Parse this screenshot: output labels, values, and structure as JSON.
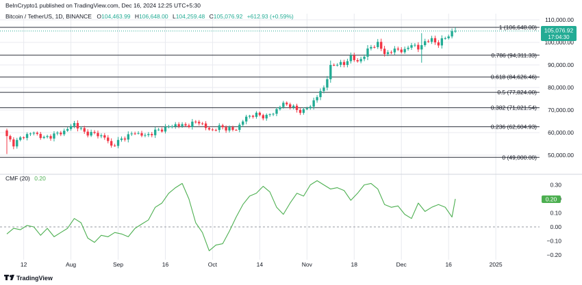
{
  "header": {
    "published": "BeInCrypto1 published on TradingView.com, Dec 16, 2024 12:25 UTC+5:30",
    "symbol": "Bitcoin / TetherUS, 1D, BINANCE",
    "o_label": "O",
    "o_value": "104,463.99",
    "h_label": "H",
    "h_value": "106,648.00",
    "l_label": "L",
    "l_value": "104,259.48",
    "c_label": "C",
    "c_value": "105,076.92",
    "change": "+612.93 (+0.59%)"
  },
  "price_badge": {
    "price": "105,076.92",
    "countdown": "17:04:30"
  },
  "cmf_badge": "0.20",
  "footer": {
    "brand": "TradingView"
  },
  "colors": {
    "up": "#22ab94",
    "down": "#f23645",
    "cmf_line": "#4caf50",
    "grid": "#e8eaef",
    "fib_line": "#2a2e39",
    "axis_text": "#131722",
    "zero_line": "#9598a1"
  },
  "chart_data": [
    {
      "type": "candlestick",
      "title": "Bitcoin / TetherUS, 1D, BINANCE",
      "ylim": [
        44000,
        112500
      ],
      "y_ticks": [
        50000,
        60000,
        70000,
        80000,
        90000,
        100000,
        110000
      ],
      "y_tick_labels": [
        "50,000.00",
        "60,000.00",
        "70,000.00",
        "80,000.00",
        "90,000.00",
        "100,000.00",
        "110,000.00"
      ],
      "x_ticks": [
        {
          "index": 5,
          "label": "12"
        },
        {
          "index": 19,
          "label": "Aug"
        },
        {
          "index": 33,
          "label": "Sep"
        },
        {
          "index": 47,
          "label": "16"
        },
        {
          "index": 61,
          "label": "Oct"
        },
        {
          "index": 75,
          "label": "14"
        },
        {
          "index": 89,
          "label": "Nov"
        },
        {
          "index": 103,
          "label": "18"
        },
        {
          "index": 117,
          "label": "Dec"
        },
        {
          "index": 131,
          "label": "16"
        },
        {
          "index": 145,
          "label": "2025"
        }
      ],
      "fib_levels": [
        {
          "label": "1 (106,648.00)",
          "value": 106648
        },
        {
          "label": "0.786 (94,311.33)",
          "value": 94311.33
        },
        {
          "label": "0.618 (84,626.46)",
          "value": 84626.46
        },
        {
          "label": "0.5 (77,824.00)",
          "value": 77824
        },
        {
          "label": "0.382 (71,021.54)",
          "value": 71021.54
        },
        {
          "label": "0.236 (62,604.93)",
          "value": 62604.93
        },
        {
          "label": "0 (49,000.00)",
          "value": 49000
        }
      ],
      "last_price": 105076.92,
      "anchors": [
        [
          0,
          58000
        ],
        [
          2,
          55000
        ],
        [
          5,
          58500
        ],
        [
          8,
          60000
        ],
        [
          11,
          57500
        ],
        [
          14,
          59000
        ],
        [
          17,
          60500
        ],
        [
          20,
          64000
        ],
        [
          23,
          60000
        ],
        [
          26,
          59500
        ],
        [
          29,
          58000
        ],
        [
          31,
          54000
        ],
        [
          33,
          56000
        ],
        [
          35,
          58000
        ],
        [
          38,
          60000
        ],
        [
          41,
          58500
        ],
        [
          44,
          60500
        ],
        [
          47,
          62000
        ],
        [
          50,
          63500
        ],
        [
          53,
          63000
        ],
        [
          55,
          64000
        ],
        [
          57,
          65000
        ],
        [
          59,
          62000
        ],
        [
          61,
          61000
        ],
        [
          63,
          62500
        ],
        [
          65,
          62000
        ],
        [
          67,
          61000
        ],
        [
          69,
          63000
        ],
        [
          71,
          67000
        ],
        [
          74,
          68000
        ],
        [
          77,
          67000
        ],
        [
          80,
          70000
        ],
        [
          82,
          73000
        ],
        [
          84,
          72000
        ],
        [
          86,
          70000
        ],
        [
          88,
          69500
        ],
        [
          90,
          72000
        ],
        [
          92,
          76000
        ],
        [
          94,
          80000
        ],
        [
          96,
          89000
        ],
        [
          98,
          91000
        ],
        [
          100,
          90000
        ],
        [
          102,
          94000
        ],
        [
          104,
          91000
        ],
        [
          106,
          94500
        ],
        [
          108,
          98000
        ],
        [
          110,
          99500
        ],
        [
          112,
          95000
        ],
        [
          114,
          96000
        ],
        [
          116,
          97000
        ],
        [
          118,
          96000
        ],
        [
          120,
          99500
        ],
        [
          122,
          97000
        ],
        [
          124,
          100500
        ],
        [
          126,
          101000
        ],
        [
          128,
          99500
        ],
        [
          130,
          102000
        ],
        [
          132,
          104500
        ],
        [
          133,
          105077
        ]
      ]
    },
    {
      "type": "line",
      "title": "CMF (20)",
      "value_label": "0.20",
      "ylim": [
        -0.22,
        0.3
      ],
      "y_ticks": [
        -0.2,
        -0.1,
        0.0,
        0.1,
        0.2,
        0.3
      ],
      "y_tick_labels": [
        "−0.20",
        "−0.10",
        "0.00",
        "0.10",
        "0.20",
        "0.30"
      ],
      "zero_line": 0.0,
      "last_value": 0.2,
      "points": [
        [
          0,
          -0.05
        ],
        [
          2,
          -0.01
        ],
        [
          4,
          -0.02
        ],
        [
          6,
          0.01
        ],
        [
          8,
          0.0
        ],
        [
          10,
          -0.06
        ],
        [
          12,
          -0.01
        ],
        [
          14,
          -0.07
        ],
        [
          16,
          -0.04
        ],
        [
          18,
          -0.01
        ],
        [
          20,
          0.06
        ],
        [
          22,
          0.03
        ],
        [
          24,
          -0.08
        ],
        [
          26,
          -0.11
        ],
        [
          28,
          -0.06
        ],
        [
          30,
          -0.07
        ],
        [
          32,
          -0.04
        ],
        [
          34,
          -0.05
        ],
        [
          36,
          -0.07
        ],
        [
          38,
          -0.01
        ],
        [
          40,
          0.02
        ],
        [
          42,
          0.05
        ],
        [
          44,
          0.14
        ],
        [
          46,
          0.17
        ],
        [
          48,
          0.24
        ],
        [
          50,
          0.28
        ],
        [
          52,
          0.31
        ],
        [
          54,
          0.2
        ],
        [
          56,
          0.03
        ],
        [
          58,
          -0.04
        ],
        [
          60,
          -0.17
        ],
        [
          62,
          -0.13
        ],
        [
          64,
          -0.12
        ],
        [
          66,
          -0.03
        ],
        [
          68,
          0.07
        ],
        [
          70,
          0.16
        ],
        [
          72,
          0.22
        ],
        [
          74,
          0.24
        ],
        [
          76,
          0.29
        ],
        [
          78,
          0.25
        ],
        [
          80,
          0.14
        ],
        [
          82,
          0.09
        ],
        [
          84,
          0.17
        ],
        [
          86,
          0.24
        ],
        [
          88,
          0.22
        ],
        [
          90,
          0.3
        ],
        [
          92,
          0.33
        ],
        [
          94,
          0.3
        ],
        [
          96,
          0.27
        ],
        [
          98,
          0.28
        ],
        [
          100,
          0.26
        ],
        [
          102,
          0.19
        ],
        [
          104,
          0.24
        ],
        [
          106,
          0.3
        ],
        [
          108,
          0.31
        ],
        [
          110,
          0.27
        ],
        [
          112,
          0.16
        ],
        [
          114,
          0.14
        ],
        [
          116,
          0.15
        ],
        [
          118,
          0.09
        ],
        [
          120,
          0.06
        ],
        [
          122,
          0.17
        ],
        [
          124,
          0.11
        ],
        [
          126,
          0.14
        ],
        [
          128,
          0.16
        ],
        [
          130,
          0.14
        ],
        [
          132,
          0.07
        ],
        [
          133,
          0.2
        ]
      ]
    }
  ]
}
